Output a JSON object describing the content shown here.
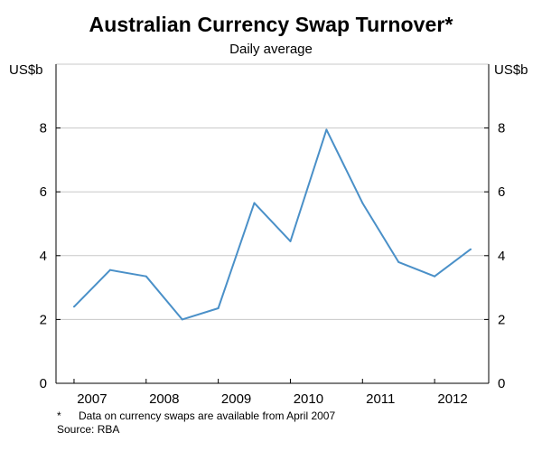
{
  "chart_data": {
    "type": "line",
    "title": "Australian Currency Swap Turnover*",
    "subtitle": "Daily average",
    "y_unit_left": "US$b",
    "y_unit_right": "US$b",
    "ylim": [
      0,
      10
    ],
    "yticks": [
      0,
      2,
      4,
      6,
      8
    ],
    "xlim": [
      2006.75,
      2012.75
    ],
    "xtick_labels": [
      {
        "label": "2007",
        "at": 2007.25
      },
      {
        "label": "2008",
        "at": 2008.25
      },
      {
        "label": "2009",
        "at": 2009.25
      },
      {
        "label": "2010",
        "at": 2010.25
      },
      {
        "label": "2011",
        "at": 2011.25
      },
      {
        "label": "2012",
        "at": 2012.25
      }
    ],
    "x_year_boundaries": [
      2007,
      2008,
      2009,
      2010,
      2011,
      2012
    ],
    "grid": true,
    "series": [
      {
        "color": "#4a90c8",
        "points": [
          {
            "x": 2007.0,
            "y": 2.4
          },
          {
            "x": 2007.5,
            "y": 3.55
          },
          {
            "x": 2008.0,
            "y": 3.35
          },
          {
            "x": 2008.5,
            "y": 2.0
          },
          {
            "x": 2009.0,
            "y": 2.35
          },
          {
            "x": 2009.5,
            "y": 5.65
          },
          {
            "x": 2010.0,
            "y": 4.45
          },
          {
            "x": 2010.5,
            "y": 7.95
          },
          {
            "x": 2011.0,
            "y": 5.65
          },
          {
            "x": 2011.5,
            "y": 3.8
          },
          {
            "x": 2012.0,
            "y": 3.35
          },
          {
            "x": 2012.5,
            "y": 4.2
          }
        ]
      }
    ]
  },
  "footnote": {
    "marker": "*",
    "text": "Data on currency swaps are available from April 2007"
  },
  "source": "Source: RBA"
}
